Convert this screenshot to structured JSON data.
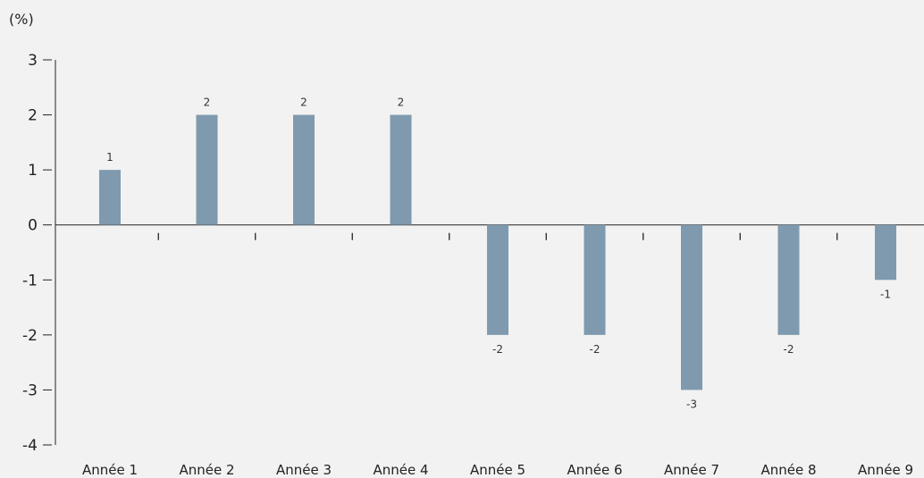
{
  "chart_data": {
    "type": "bar",
    "unit_label": "(%)",
    "categories": [
      "Année 1",
      "Année 2",
      "Année 3",
      "Année 4",
      "Année 5",
      "Année 6",
      "Année 7",
      "Année 8",
      "Année 9"
    ],
    "values": [
      1,
      2,
      2,
      2,
      -2,
      -2,
      -3,
      -2,
      -1
    ],
    "data_labels": [
      "1",
      "2",
      "2",
      "2",
      "-2",
      "-2",
      "-3",
      "-2",
      "-1"
    ],
    "y_ticks": [
      3,
      2,
      1,
      0,
      -1,
      -2,
      -3,
      -4
    ],
    "y_tick_labels": [
      "3",
      "2",
      "1",
      "0",
      "-1",
      "-2",
      "-3",
      "-4"
    ],
    "ylim": [
      -4,
      3
    ],
    "grid": false,
    "legend": "none",
    "colors": {
      "bar": "#7f9aaf",
      "axis": "#222222",
      "background": "#f2f2f2"
    }
  }
}
